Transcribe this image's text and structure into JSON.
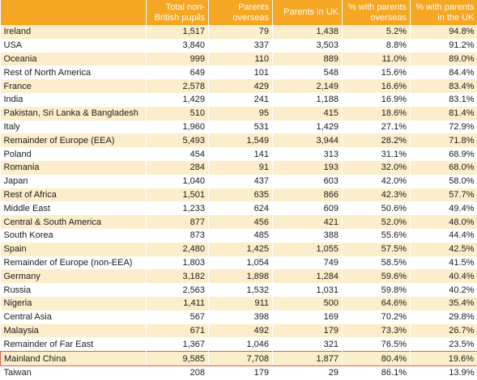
{
  "table": {
    "headers": [
      "",
      "Total non-British pupils",
      "Parents overseas",
      "Parents in UK",
      "% with parents overseas",
      "% with parents in the UK"
    ],
    "rows": [
      [
        "Ireland",
        "1,517",
        "79",
        "1,438",
        "5.2%",
        "94.8%"
      ],
      [
        "USA",
        "3,840",
        "337",
        "3,503",
        "8.8%",
        "91.2%"
      ],
      [
        "Oceania",
        "999",
        "110",
        "889",
        "11.0%",
        "89.0%"
      ],
      [
        "Rest of North America",
        "649",
        "101",
        "548",
        "15.6%",
        "84.4%"
      ],
      [
        "France",
        "2,578",
        "429",
        "2,149",
        "16.6%",
        "83.4%"
      ],
      [
        "India",
        "1,429",
        "241",
        "1,188",
        "16.9%",
        "83.1%"
      ],
      [
        "Pakistan, Sri Lanka & Bangladesh",
        "510",
        "95",
        "415",
        "18.6%",
        "81.4%"
      ],
      [
        "Italy",
        "1,960",
        "531",
        "1,429",
        "27.1%",
        "72.9%"
      ],
      [
        "Remainder of Europe (EEA)",
        "5,493",
        "1,549",
        "3,944",
        "28.2%",
        "71.8%"
      ],
      [
        "Poland",
        "454",
        "141",
        "313",
        "31.1%",
        "68.9%"
      ],
      [
        "Romania",
        "284",
        "91",
        "193",
        "32.0%",
        "68.0%"
      ],
      [
        "Japan",
        "1,040",
        "437",
        "603",
        "42.0%",
        "58.0%"
      ],
      [
        "Rest of Africa",
        "1,501",
        "635",
        "866",
        "42.3%",
        "57.7%"
      ],
      [
        "Middle East",
        "1,233",
        "624",
        "609",
        "50.6%",
        "49.4%"
      ],
      [
        "Central & South America",
        "877",
        "456",
        "421",
        "52.0%",
        "48.0%"
      ],
      [
        "South Korea",
        "873",
        "485",
        "388",
        "55.6%",
        "44.4%"
      ],
      [
        "Spain",
        "2,480",
        "1,425",
        "1,055",
        "57.5%",
        "42.5%"
      ],
      [
        "Remainder of Europe (non-EEA)",
        "1,803",
        "1,054",
        "749",
        "58.5%",
        "41.5%"
      ],
      [
        "Germany",
        "3,182",
        "1,898",
        "1,284",
        "59.6%",
        "40.4%"
      ],
      [
        "Russia",
        "2,563",
        "1,532",
        "1,031",
        "59.8%",
        "40.2%"
      ],
      [
        "Nigeria",
        "1,411",
        "911",
        "500",
        "64.6%",
        "35.4%"
      ],
      [
        "Central Asia",
        "567",
        "398",
        "169",
        "70.2%",
        "29.8%"
      ],
      [
        "Malaysia",
        "671",
        "492",
        "179",
        "73.3%",
        "26.7%"
      ],
      [
        "Remainder of Far East",
        "1,367",
        "1,046",
        "321",
        "76.5%",
        "23.5%"
      ],
      [
        "Mainland China",
        "9,585",
        "7,708",
        "1,877",
        "80.4%",
        "19.6%"
      ],
      [
        "Taiwan",
        "208",
        "179",
        "29",
        "86.1%",
        "13.9%"
      ]
    ],
    "highlighted_row": "Mainland China",
    "colors": {
      "header_bg": "#f5a623",
      "header_text": "#ffffff",
      "stripe": "#fdeecb",
      "highlight_border": "#d9604a"
    }
  }
}
